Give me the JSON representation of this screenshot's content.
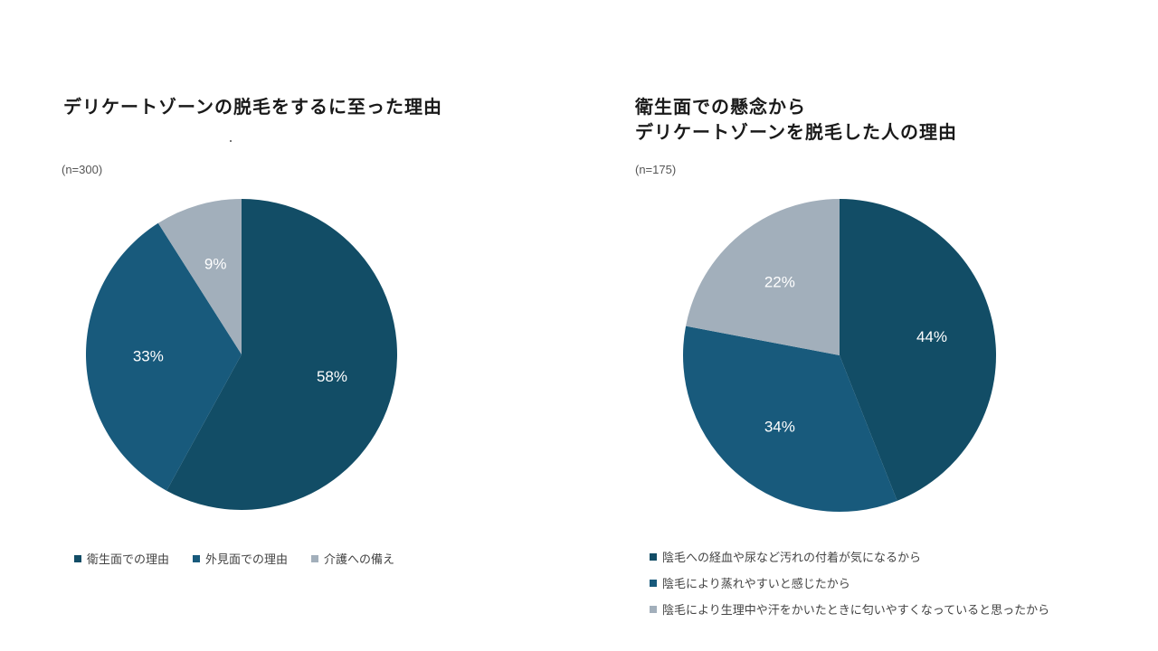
{
  "colors": {
    "dark_teal": "#124d66",
    "mid_teal": "#185a7c",
    "gray_blue": "#a2afbb",
    "label_text": "#ffffff"
  },
  "charts": {
    "left": {
      "title_lines": [
        "デリケートゾーンの脱毛をするに至った理由"
      ],
      "n_label": "(n=300)"
    },
    "right": {
      "title_lines": [
        "衛生面での懸念から",
        "デリケートゾーンを脱毛した人の理由"
      ],
      "n_label": "(n=175)"
    }
  },
  "chart_data": [
    {
      "type": "pie",
      "title": "デリケートゾーンの脱毛をするに至った理由",
      "n": "(n=300)",
      "slices": [
        {
          "label": "衛生面での理由",
          "value": 58,
          "display": "58%",
          "color": "#124d66"
        },
        {
          "label": "外見面での理由",
          "value": 33,
          "display": "33%",
          "color": "#185a7c"
        },
        {
          "label": "介護への備え",
          "value": 9,
          "display": "9%",
          "color": "#a2afbb"
        }
      ],
      "legend_placement": "bottom"
    },
    {
      "type": "pie",
      "title": "衛生面での懸念から デリケートゾーンを脱毛した人の理由",
      "n": "(n=175)",
      "slices": [
        {
          "label": "陰毛への経血や尿など汚れの付着が気になるから",
          "value": 44,
          "display": "44%",
          "color": "#124d66"
        },
        {
          "label": "陰毛により蒸れやすいと感じたから",
          "value": 34,
          "display": "34%",
          "color": "#185a7c"
        },
        {
          "label": "陰毛により生理中や汗をかいたときに匂いやすくなっていると思ったから",
          "value": 22,
          "display": "22%",
          "color": "#a2afbb"
        }
      ],
      "legend_placement": "bottom"
    }
  ]
}
